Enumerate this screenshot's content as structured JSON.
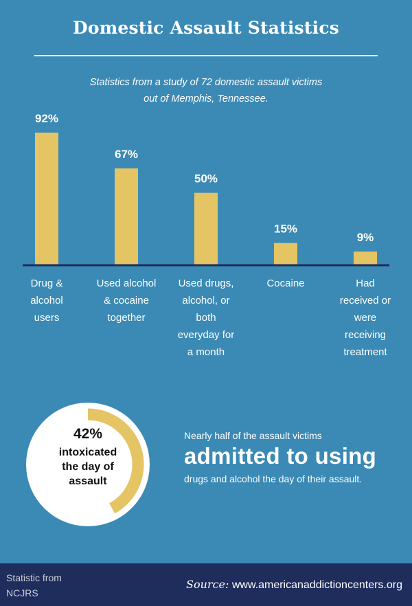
{
  "header": {
    "title": "Domestic Assault Statistics",
    "subtitle_lines": [
      "Statistics from a study of 72 domestic assault victims",
      "out of Memphis, Tennessee."
    ]
  },
  "colors": {
    "background": "#3b8ab5",
    "bar": "#e4c463",
    "axis": "#1f2d5c",
    "footer": "#1f2d5c"
  },
  "chart_data": {
    "type": "bar",
    "title": "",
    "xlabel": "",
    "ylabel": "",
    "ylim": [
      0,
      100
    ],
    "grid": false,
    "categories": [
      [
        "Drug &",
        "alcohol",
        "users"
      ],
      [
        "Used alcohol",
        "& cocaine",
        "together"
      ],
      [
        "Used drugs,",
        "alcohol, or",
        "both",
        "everyday for",
        "a month"
      ],
      [
        "Cocaine"
      ],
      [
        "Had",
        "received or",
        "were",
        "receiving",
        "treatment"
      ]
    ],
    "values": [
      92,
      67,
      50,
      15,
      9
    ],
    "value_labels": [
      "92%",
      "67%",
      "50%",
      "15%",
      "9%"
    ]
  },
  "donut": {
    "percent": 42,
    "percent_label": "42%",
    "caption_lines": [
      "intoxicated",
      "the day of",
      "assault"
    ]
  },
  "callout": {
    "intro": "Nearly half of the assault victims",
    "emphasis": "admitted to using",
    "outro": "drugs and alcohol the day of their assault."
  },
  "footer": {
    "left_lines": [
      "Statistic from",
      "NCJRS"
    ],
    "source_label": "Source:",
    "source_url": "www.americanaddictioncenters.org"
  }
}
